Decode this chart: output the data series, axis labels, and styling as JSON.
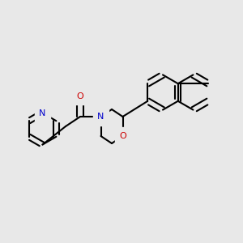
{
  "background_color": "#e8e8e8",
  "bond_color": "#000000",
  "N_color": "#0000cc",
  "O_color": "#cc0000",
  "lw": 1.5,
  "figsize": [
    3.0,
    3.0
  ],
  "dpi": 100,
  "atoms": {
    "N": "N",
    "O": "O",
    "O2": "O"
  }
}
